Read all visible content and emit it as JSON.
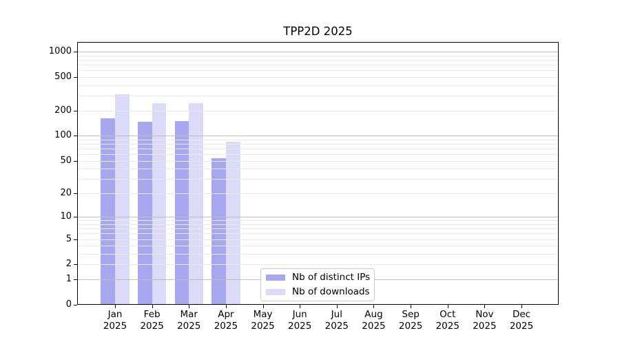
{
  "title": "TPP2D 2025",
  "legend": {
    "items": [
      {
        "label": "Nb of distinct IPs",
        "color": "#a7a7ef"
      },
      {
        "label": "Nb of downloads",
        "color": "#dbdbf9"
      }
    ]
  },
  "chart_data": {
    "type": "bar",
    "title": "TPP2D 2025",
    "y_scale": "log10(1+value)",
    "categories": [
      "Jan",
      "Feb",
      "Mar",
      "Apr",
      "May",
      "Jun",
      "Jul",
      "Aug",
      "Sep",
      "Oct",
      "Nov",
      "Dec"
    ],
    "category_year": "2025",
    "series": [
      {
        "name": "Nb of distinct IPs",
        "color": "#a7a7ef",
        "values": [
          160,
          146,
          149,
          54,
          0,
          0,
          0,
          0,
          0,
          0,
          0,
          0
        ]
      },
      {
        "name": "Nb of downloads",
        "color": "#dbdbf9",
        "values": [
          314,
          242,
          242,
          85,
          0,
          0,
          0,
          0,
          0,
          0,
          0,
          0
        ]
      }
    ],
    "y_tick_labels": [
      0,
      1,
      2,
      5,
      10,
      20,
      50,
      100,
      200,
      500,
      1000
    ],
    "ylim": [
      0,
      1070
    ],
    "legend_position": "lower center-right inside axes",
    "grid": {
      "major_at": [
        1,
        10,
        100,
        1000
      ],
      "major_color": "#bdbdbd",
      "minor_color": "#e8e8e8"
    },
    "bar_color_distinct_ips": "#a7a7ef",
    "bar_color_downloads": "#dbdbf9"
  }
}
